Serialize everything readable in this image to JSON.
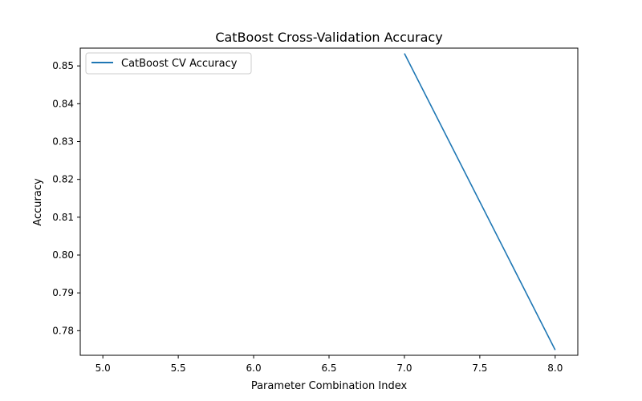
{
  "chart_data": {
    "type": "line",
    "title": "CatBoost Cross-Validation Accuracy",
    "xlabel": "Parameter Combination Index",
    "ylabel": "Accuracy",
    "xlim": [
      4.85,
      8.15
    ],
    "ylim": [
      0.7735,
      0.8547
    ],
    "xticks": [
      5.0,
      5.5,
      6.0,
      6.5,
      7.0,
      7.5,
      8.0
    ],
    "xtick_labels": [
      "5.0",
      "5.5",
      "6.0",
      "6.5",
      "7.0",
      "7.5",
      "8.0"
    ],
    "yticks": [
      0.78,
      0.79,
      0.8,
      0.81,
      0.82,
      0.83,
      0.84,
      0.85
    ],
    "ytick_labels": [
      "0.78",
      "0.79",
      "0.80",
      "0.81",
      "0.82",
      "0.83",
      "0.84",
      "0.85"
    ],
    "grid": false,
    "legend_position": "upper-left",
    "series": [
      {
        "name": "CatBoost CV Accuracy",
        "color": "#1f77b4",
        "x": [
          7,
          8
        ],
        "y": [
          0.8533,
          0.7749
        ]
      }
    ]
  }
}
